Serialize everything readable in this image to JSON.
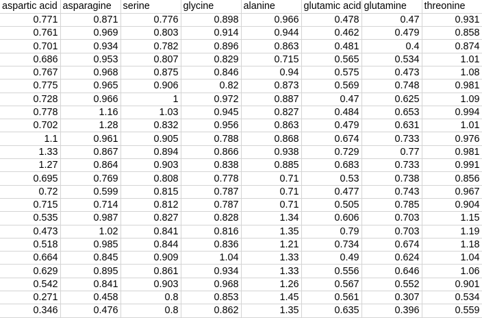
{
  "sheet": {
    "columns": [
      "aspartic acid",
      "asparagine",
      "serine",
      "glycine",
      "alanine",
      "glutamic acid",
      "glutamine",
      "threonine"
    ],
    "rows": [
      [
        "0.771",
        "0.871",
        "0.776",
        "0.898",
        "0.966",
        "0.478",
        "0.47",
        "0.931"
      ],
      [
        "0.761",
        "0.969",
        "0.803",
        "0.914",
        "0.944",
        "0.462",
        "0.479",
        "0.858"
      ],
      [
        "0.701",
        "0.934",
        "0.782",
        "0.896",
        "0.863",
        "0.481",
        "0.4",
        "0.874"
      ],
      [
        "0.686",
        "0.953",
        "0.807",
        "0.829",
        "0.715",
        "0.565",
        "0.534",
        "1.01"
      ],
      [
        "0.767",
        "0.968",
        "0.875",
        "0.846",
        "0.94",
        "0.575",
        "0.473",
        "1.08"
      ],
      [
        "0.775",
        "0.965",
        "0.906",
        "0.82",
        "0.873",
        "0.569",
        "0.748",
        "0.981"
      ],
      [
        "0.728",
        "0.966",
        "1",
        "0.972",
        "0.887",
        "0.47",
        "0.625",
        "1.09"
      ],
      [
        "0.778",
        "1.16",
        "1.03",
        "0.945",
        "0.827",
        "0.484",
        "0.653",
        "0.994"
      ],
      [
        "0.702",
        "1.28",
        "0.832",
        "0.956",
        "0.863",
        "0.479",
        "0.631",
        "1.01"
      ],
      [
        "1.1",
        "0.961",
        "0.905",
        "0.788",
        "0.868",
        "0.674",
        "0.733",
        "0.976"
      ],
      [
        "1.33",
        "0.867",
        "0.894",
        "0.866",
        "0.938",
        "0.729",
        "0.77",
        "0.981"
      ],
      [
        "1.27",
        "0.864",
        "0.903",
        "0.838",
        "0.885",
        "0.683",
        "0.733",
        "0.991"
      ],
      [
        "0.695",
        "0.769",
        "0.808",
        "0.778",
        "0.71",
        "0.53",
        "0.738",
        "0.856"
      ],
      [
        "0.72",
        "0.599",
        "0.815",
        "0.787",
        "0.71",
        "0.477",
        "0.743",
        "0.967"
      ],
      [
        "0.715",
        "0.714",
        "0.812",
        "0.787",
        "0.71",
        "0.505",
        "0.785",
        "0.904"
      ],
      [
        "0.535",
        "0.987",
        "0.827",
        "0.828",
        "1.34",
        "0.606",
        "0.703",
        "1.15"
      ],
      [
        "0.473",
        "1.02",
        "0.841",
        "0.816",
        "1.35",
        "0.79",
        "0.703",
        "1.19"
      ],
      [
        "0.518",
        "0.985",
        "0.844",
        "0.836",
        "1.21",
        "0.734",
        "0.674",
        "1.18"
      ],
      [
        "0.664",
        "0.845",
        "0.909",
        "1.04",
        "1.33",
        "0.49",
        "0.624",
        "1.04"
      ],
      [
        "0.629",
        "0.895",
        "0.861",
        "0.934",
        "1.33",
        "0.556",
        "0.646",
        "1.06"
      ],
      [
        "0.542",
        "0.841",
        "0.903",
        "0.968",
        "1.26",
        "0.567",
        "0.552",
        "0.901"
      ],
      [
        "0.271",
        "0.458",
        "0.8",
        "0.853",
        "1.45",
        "0.561",
        "0.307",
        "0.534"
      ],
      [
        "0.346",
        "0.476",
        "0.8",
        "0.862",
        "1.35",
        "0.635",
        "0.396",
        "0.559"
      ]
    ]
  }
}
